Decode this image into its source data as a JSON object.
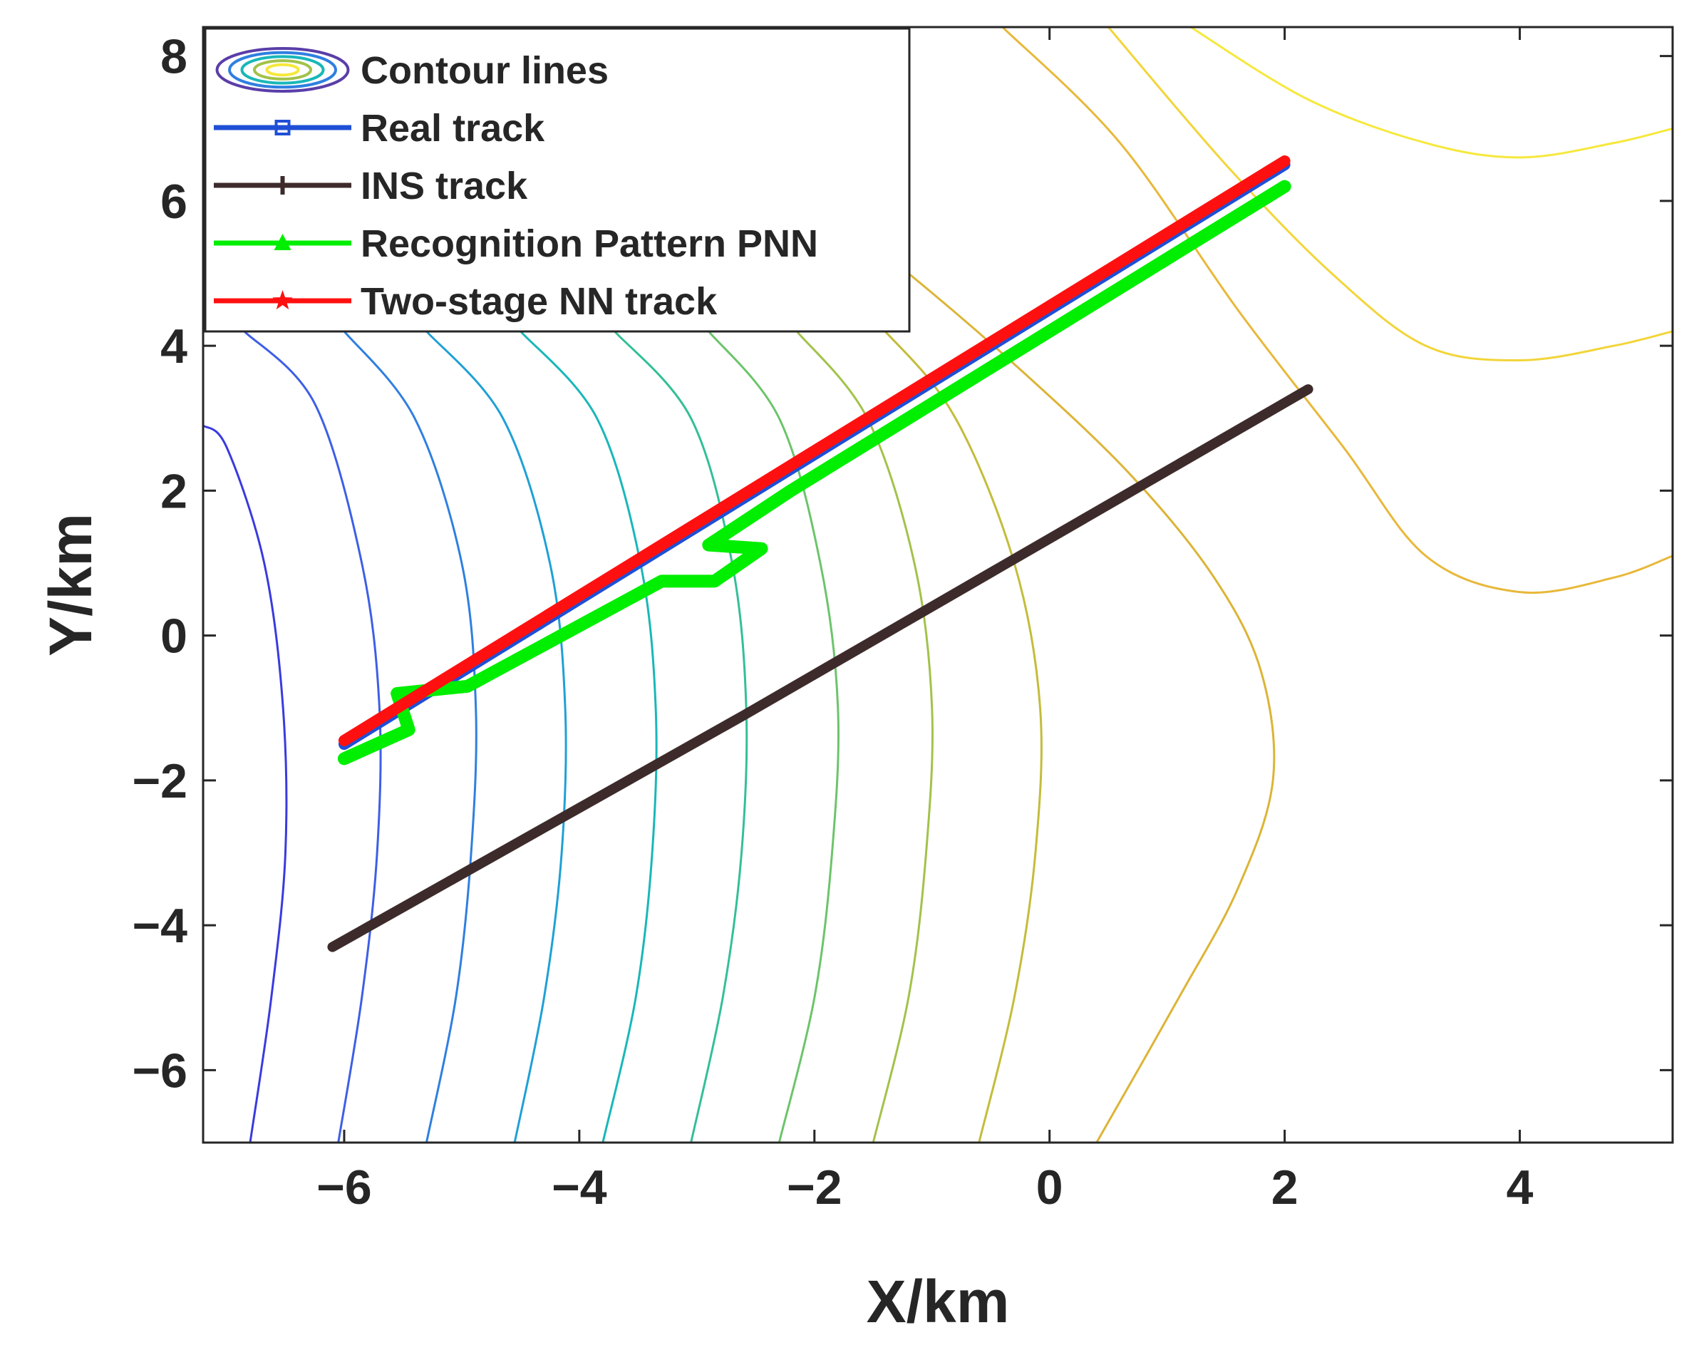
{
  "chart_data": {
    "type": "line",
    "xlabel": "X/km",
    "ylabel": "Y/km",
    "xlim": [
      -7.2,
      5.3
    ],
    "ylim": [
      -7,
      8.4
    ],
    "xticks": [
      -6,
      -4,
      -2,
      0,
      2,
      4
    ],
    "yticks": [
      -6,
      -4,
      -2,
      0,
      2,
      4,
      6,
      8
    ],
    "xtick_labels": [
      "−6",
      "−4",
      "−2",
      "0",
      "2",
      "4"
    ],
    "ytick_labels": [
      "−6",
      "−4",
      "−2",
      "0",
      "2",
      "4",
      "6",
      "8"
    ],
    "grid": false,
    "legend_position": "top-left",
    "series": [
      {
        "name": "Contour lines",
        "kind": "contour",
        "levels": [
          {
            "color": "#3a3adf",
            "points": [
              [
                -6.8,
                -7
              ],
              [
                -6.62,
                -5
              ],
              [
                -6.5,
                -3
              ],
              [
                -6.52,
                -1
              ],
              [
                -6.68,
                1
              ],
              [
                -7.0,
                2.6
              ],
              [
                -7.2,
                2.9
              ]
            ]
          },
          {
            "color": "#3d5fe6",
            "points": [
              [
                -6.05,
                -7
              ],
              [
                -5.85,
                -5
              ],
              [
                -5.72,
                -3
              ],
              [
                -5.7,
                -1
              ],
              [
                -5.85,
                1
              ],
              [
                -6.25,
                3.2
              ],
              [
                -6.85,
                4.2
              ]
            ]
          },
          {
            "color": "#2f7fe0",
            "points": [
              [
                -5.3,
                -7
              ],
              [
                -5.05,
                -5
              ],
              [
                -4.92,
                -3
              ],
              [
                -4.88,
                -1
              ],
              [
                -5.0,
                1
              ],
              [
                -5.4,
                3.0
              ],
              [
                -6.0,
                4.2
              ]
            ]
          },
          {
            "color": "#1fa0d6",
            "points": [
              [
                -4.55,
                -7
              ],
              [
                -4.3,
                -5
              ],
              [
                -4.15,
                -3
              ],
              [
                -4.12,
                -1
              ],
              [
                -4.25,
                1
              ],
              [
                -4.65,
                3.0
              ],
              [
                -5.3,
                4.2
              ]
            ]
          },
          {
            "color": "#19b7b8",
            "points": [
              [
                -3.8,
                -7
              ],
              [
                -3.52,
                -5
              ],
              [
                -3.38,
                -3
              ],
              [
                -3.35,
                -1
              ],
              [
                -3.48,
                1
              ],
              [
                -3.85,
                3.0
              ],
              [
                -4.5,
                4.2
              ]
            ]
          },
          {
            "color": "#33bf97",
            "points": [
              [
                -3.05,
                -7
              ],
              [
                -2.78,
                -5
              ],
              [
                -2.62,
                -3
              ],
              [
                -2.58,
                -1
              ],
              [
                -2.7,
                1
              ],
              [
                -3.05,
                3.0
              ],
              [
                -3.7,
                4.2
              ]
            ]
          },
          {
            "color": "#6cc46b",
            "points": [
              [
                -2.3,
                -7
              ],
              [
                -2.0,
                -5
              ],
              [
                -1.85,
                -3
              ],
              [
                -1.8,
                -1
              ],
              [
                -1.95,
                1
              ],
              [
                -2.3,
                3.0
              ],
              [
                -2.9,
                4.2
              ]
            ]
          },
          {
            "color": "#a2c24a",
            "points": [
              [
                -1.5,
                -7
              ],
              [
                -1.2,
                -5
              ],
              [
                -1.05,
                -3
              ],
              [
                -1.0,
                -1
              ],
              [
                -1.15,
                1
              ],
              [
                -1.55,
                3.0
              ],
              [
                -2.15,
                4.2
              ]
            ]
          },
          {
            "color": "#c4bc3a",
            "points": [
              [
                -0.6,
                -7
              ],
              [
                -0.3,
                -5
              ],
              [
                -0.12,
                -3
              ],
              [
                -0.08,
                -1
              ],
              [
                -0.3,
                1
              ],
              [
                -0.8,
                3.0
              ],
              [
                -1.4,
                4.2
              ],
              [
                -2.1,
                5.2
              ]
            ]
          },
          {
            "color": "#dcb436",
            "points": [
              [
                0.4,
                -7
              ],
              [
                1.1,
                -5
              ],
              [
                1.6,
                -3.5
              ],
              [
                1.9,
                -2
              ],
              [
                1.8,
                -0.5
              ],
              [
                1.4,
                0.8
              ],
              [
                0.7,
                2.2
              ],
              [
                -0.2,
                3.6
              ],
              [
                -1.2,
                5.0
              ],
              [
                -2.0,
                6.0
              ]
            ]
          },
          {
            "color": "#e8b83a",
            "points": [
              [
                -0.4,
                8.4
              ],
              [
                0.6,
                6.8
              ],
              [
                1.6,
                4.5
              ],
              [
                2.5,
                2.6
              ],
              [
                3.2,
                1.1
              ],
              [
                4.0,
                0.6
              ],
              [
                4.8,
                0.8
              ],
              [
                5.3,
                1.1
              ]
            ]
          },
          {
            "color": "#f2d53a",
            "points": [
              [
                0.5,
                8.4
              ],
              [
                1.5,
                6.5
              ],
              [
                2.4,
                5.0
              ],
              [
                3.2,
                4.0
              ],
              [
                4.0,
                3.8
              ],
              [
                4.8,
                4.0
              ],
              [
                5.3,
                4.2
              ]
            ]
          },
          {
            "color": "#f6e83c",
            "points": [
              [
                1.2,
                8.4
              ],
              [
                2.2,
                7.4
              ],
              [
                3.2,
                6.8
              ],
              [
                4.0,
                6.6
              ],
              [
                4.8,
                6.8
              ],
              [
                5.3,
                7.0
              ]
            ]
          }
        ]
      },
      {
        "name": "Real track",
        "color": "#1f4fd6",
        "points": [
          [
            -6.0,
            -1.5
          ],
          [
            2.0,
            6.5
          ]
        ]
      },
      {
        "name": "INS track",
        "color": "#3d2b2b",
        "points": [
          [
            -6.1,
            -4.3
          ],
          [
            -2.6,
            -1.1
          ],
          [
            2.2,
            3.4
          ]
        ]
      },
      {
        "name": "Recognition Pattern PNN",
        "color": "#00ee00",
        "points": [
          [
            -6.0,
            -1.7
          ],
          [
            -5.45,
            -1.3
          ],
          [
            -5.55,
            -0.8
          ],
          [
            -4.95,
            -0.7
          ],
          [
            -3.3,
            0.75
          ],
          [
            -2.85,
            0.75
          ],
          [
            -2.45,
            1.2
          ],
          [
            -2.9,
            1.25
          ],
          [
            -2.2,
            2.0
          ],
          [
            2.0,
            6.2
          ]
        ]
      },
      {
        "name": "Two-stage NN track",
        "color": "#ff1010",
        "points": [
          [
            -6.0,
            -1.45
          ],
          [
            2.0,
            6.55
          ]
        ]
      }
    ]
  }
}
